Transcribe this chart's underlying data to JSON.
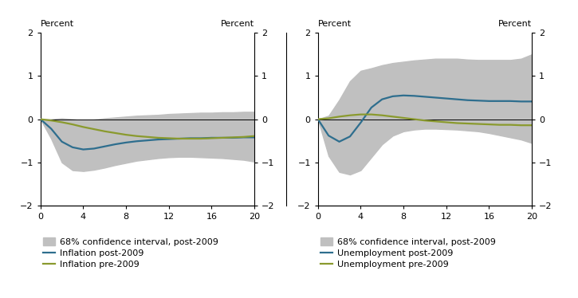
{
  "quarters": [
    0,
    1,
    2,
    3,
    4,
    5,
    6,
    7,
    8,
    9,
    10,
    11,
    12,
    13,
    14,
    15,
    16,
    17,
    18,
    19,
    20
  ],
  "left_post2009_line": [
    0,
    -0.22,
    -0.52,
    -0.65,
    -0.7,
    -0.68,
    -0.63,
    -0.58,
    -0.54,
    -0.51,
    -0.49,
    -0.47,
    -0.46,
    -0.45,
    -0.44,
    -0.44,
    -0.43,
    -0.43,
    -0.43,
    -0.42,
    -0.42
  ],
  "left_pre2009_line": [
    0,
    -0.03,
    -0.07,
    -0.12,
    -0.18,
    -0.23,
    -0.28,
    -0.32,
    -0.36,
    -0.39,
    -0.41,
    -0.43,
    -0.44,
    -0.45,
    -0.45,
    -0.45,
    -0.44,
    -0.43,
    -0.42,
    -0.41,
    -0.39
  ],
  "left_ci_upper": [
    0,
    0.0,
    0.02,
    0.0,
    -0.03,
    -0.01,
    0.02,
    0.04,
    0.06,
    0.08,
    0.09,
    0.1,
    0.12,
    0.13,
    0.14,
    0.15,
    0.15,
    0.16,
    0.16,
    0.17,
    0.17
  ],
  "left_ci_lower": [
    0,
    -0.45,
    -1.0,
    -1.18,
    -1.2,
    -1.17,
    -1.12,
    -1.06,
    -1.01,
    -0.96,
    -0.93,
    -0.9,
    -0.88,
    -0.87,
    -0.87,
    -0.88,
    -0.89,
    -0.9,
    -0.92,
    -0.94,
    -0.98
  ],
  "right_post2009_line": [
    0,
    -0.38,
    -0.52,
    -0.4,
    -0.08,
    0.27,
    0.46,
    0.53,
    0.55,
    0.54,
    0.52,
    0.5,
    0.48,
    0.46,
    0.44,
    0.43,
    0.42,
    0.42,
    0.42,
    0.41,
    0.41
  ],
  "right_pre2009_line": [
    0,
    0.02,
    0.06,
    0.09,
    0.11,
    0.11,
    0.09,
    0.06,
    0.03,
    0.0,
    -0.03,
    -0.05,
    -0.07,
    -0.09,
    -0.1,
    -0.11,
    -0.12,
    -0.13,
    -0.13,
    -0.14,
    -0.14
  ],
  "right_ci_upper": [
    0,
    0.08,
    0.45,
    0.88,
    1.12,
    1.18,
    1.25,
    1.3,
    1.33,
    1.36,
    1.38,
    1.4,
    1.4,
    1.4,
    1.38,
    1.37,
    1.37,
    1.37,
    1.37,
    1.4,
    1.5
  ],
  "right_ci_lower": [
    0,
    -0.85,
    -1.22,
    -1.28,
    -1.18,
    -0.88,
    -0.58,
    -0.38,
    -0.28,
    -0.24,
    -0.22,
    -0.22,
    -0.23,
    -0.24,
    -0.26,
    -0.28,
    -0.32,
    -0.37,
    -0.42,
    -0.47,
    -0.55
  ],
  "line_color_post2009": "#2e6e8e",
  "line_color_pre2009": "#8a9a2e",
  "ci_color": "#c0c0c0",
  "zero_line_color": "#000000",
  "ylim": [
    -2,
    2
  ],
  "xlim": [
    0,
    20
  ],
  "xticks": [
    0,
    4,
    8,
    12,
    16,
    20
  ],
  "yticks": [
    -2,
    -1,
    0,
    1,
    2
  ],
  "ylabel": "Percent",
  "left_legend": [
    "68% confidence interval, post-2009",
    "Inflation post-2009",
    "Inflation pre-2009"
  ],
  "right_legend": [
    "68% confidence interval, post-2009",
    "Unemployment post-2009",
    "Unemployment pre-2009"
  ],
  "line_width": 1.6,
  "font_size": 8.0
}
